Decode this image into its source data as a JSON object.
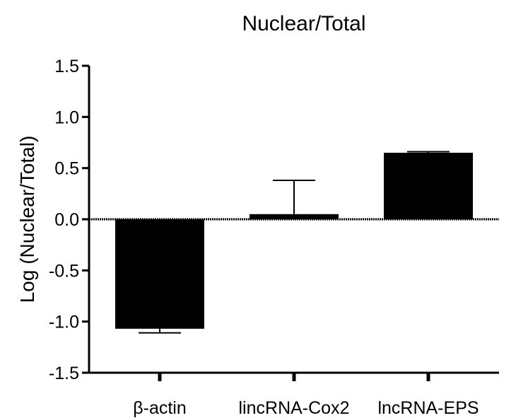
{
  "chart_data": {
    "type": "bar",
    "title": "Nuclear/Total",
    "xlabel": "",
    "ylabel": "Log (Nuclear/Total)",
    "categories": [
      "β-actin",
      "lincRNA-Cox2",
      "lncRNA-EPS"
    ],
    "values": [
      -1.07,
      0.05,
      0.65
    ],
    "errors": [
      0.04,
      0.33,
      0.01
    ],
    "error_direction": [
      "down",
      "up",
      "up"
    ],
    "ylim": [
      -1.5,
      1.5
    ],
    "yticks": [
      "1.5",
      "1.0",
      "0.5",
      "0.0",
      "-0.5",
      "-1.0",
      "-1.5"
    ],
    "ytick_values": [
      1.5,
      1.0,
      0.5,
      0.0,
      -0.5,
      -1.0,
      -1.5
    ],
    "bar_color": "#000000",
    "grid": false,
    "legend": "none"
  }
}
